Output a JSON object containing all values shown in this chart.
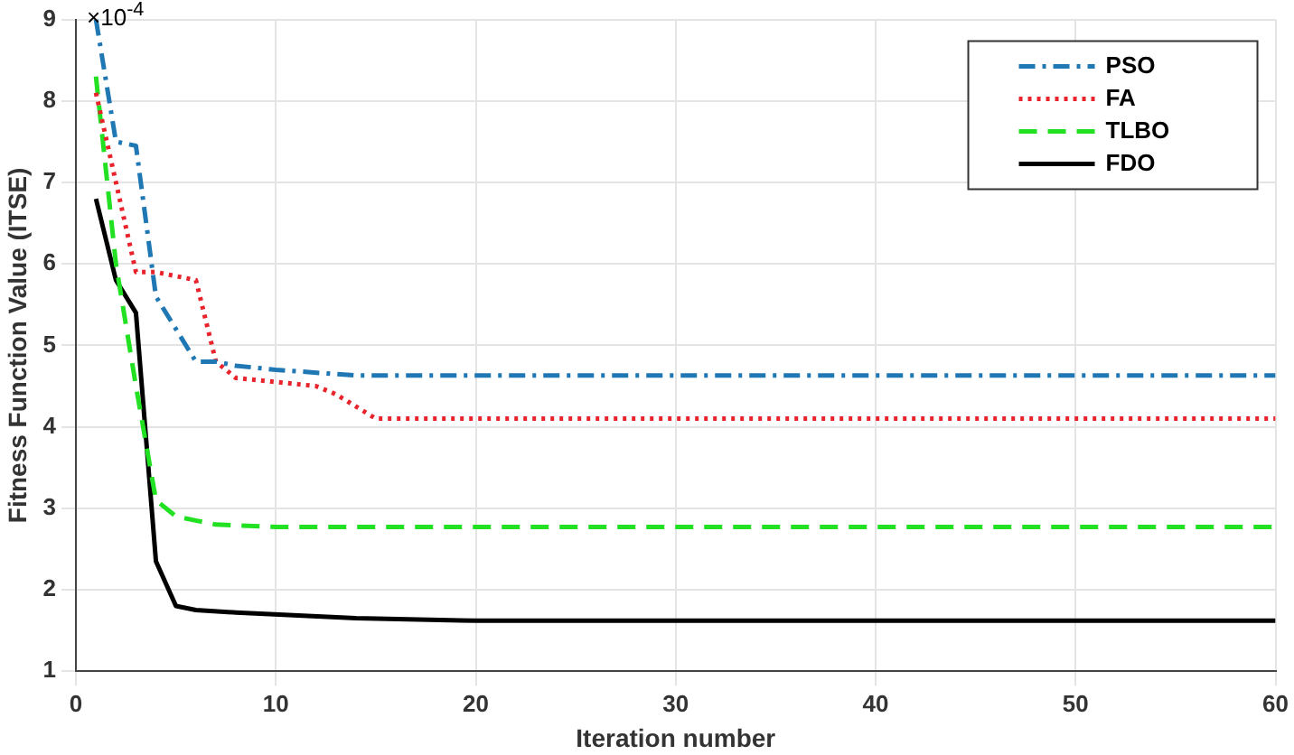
{
  "chart_data": {
    "type": "line",
    "xlabel": "Iteration number",
    "ylabel": "Fitness Function Value (ITSE)",
    "annotations": [
      "×10$^{-4}$"
    ],
    "xlim": [
      0,
      60
    ],
    "xticks": [
      0,
      10,
      20,
      30,
      40,
      50,
      60
    ],
    "ylim": [
      1,
      9
    ],
    "yticks": [
      1,
      2,
      3,
      4,
      5,
      6,
      7,
      8,
      9
    ],
    "grid": true,
    "legend": "top right",
    "marker": "none",
    "series": [
      {
        "name": "PSO",
        "color": "#1f77b4",
        "line_style": "dashdot",
        "x": [
          1,
          2,
          3,
          4,
          5,
          6,
          7,
          8,
          10,
          14,
          60
        ],
        "values": [
          9.0,
          7.5,
          7.45,
          5.6,
          5.2,
          4.8,
          4.8,
          4.75,
          4.7,
          4.63,
          4.63
        ]
      },
      {
        "name": "FA",
        "color": "#e8232b",
        "line_style": "dotted",
        "x": [
          1,
          2,
          3,
          4,
          5,
          6,
          7,
          8,
          10,
          12,
          13,
          15,
          60
        ],
        "values": [
          8.1,
          7.0,
          5.9,
          5.9,
          5.85,
          5.8,
          4.8,
          4.6,
          4.55,
          4.5,
          4.4,
          4.1,
          4.1
        ]
      },
      {
        "name": "TLBO",
        "color": "#22e022",
        "line_style": "dashed",
        "x": [
          1,
          2,
          3,
          4,
          5,
          6,
          7,
          10,
          60
        ],
        "values": [
          8.3,
          6.0,
          4.5,
          3.1,
          2.9,
          2.85,
          2.8,
          2.77,
          2.77
        ]
      },
      {
        "name": "FDO",
        "color": "#000000",
        "line_style": "solid",
        "x": [
          1,
          2,
          3,
          4,
          5,
          6,
          8,
          14,
          20,
          60
        ],
        "values": [
          6.8,
          5.8,
          5.4,
          2.35,
          1.8,
          1.75,
          1.72,
          1.65,
          1.62,
          1.62
        ]
      }
    ]
  }
}
